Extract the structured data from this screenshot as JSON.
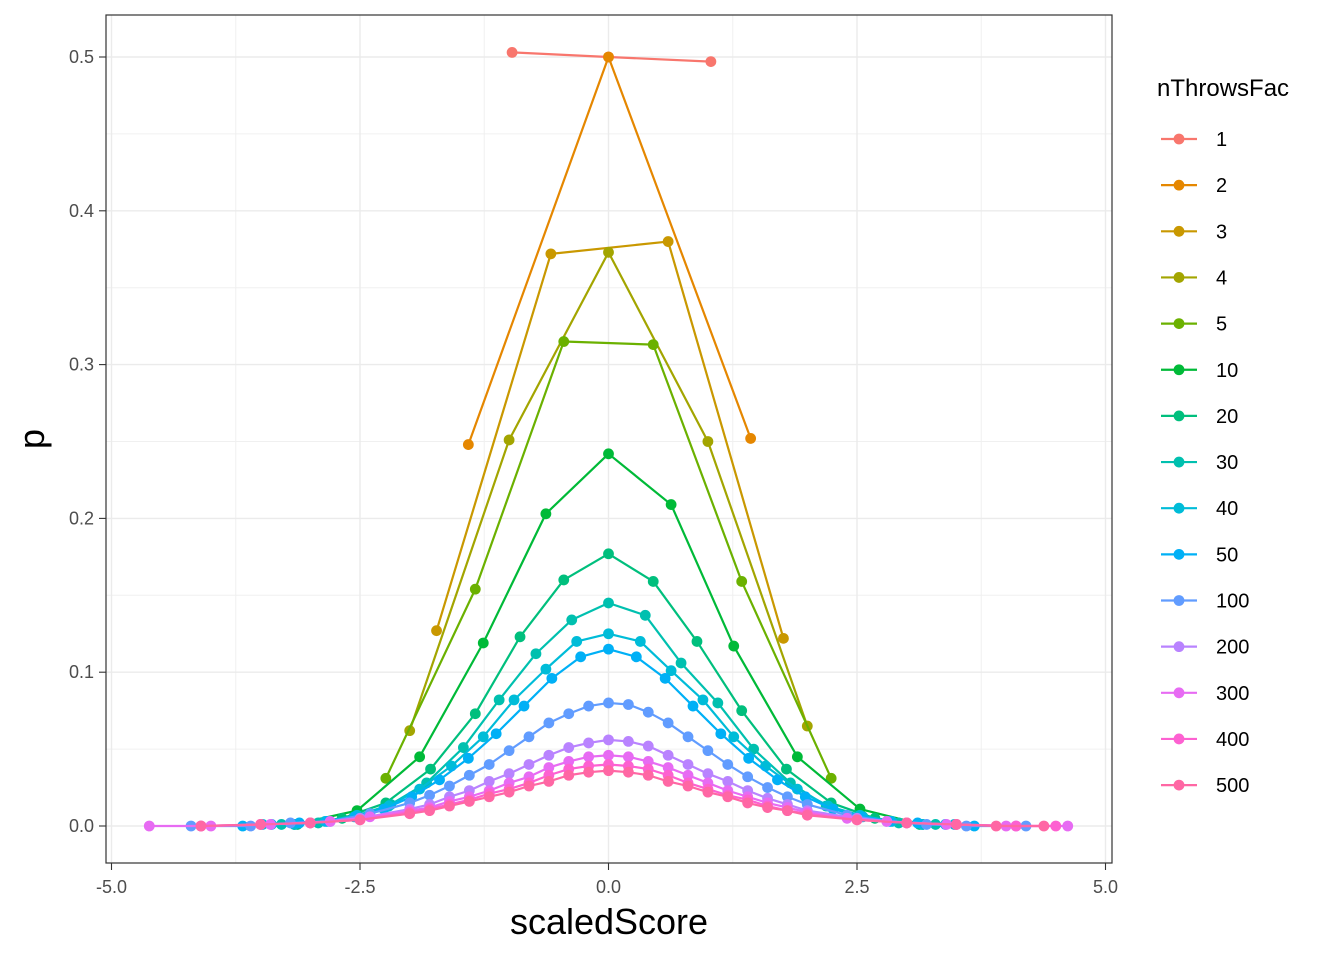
{
  "chart_data": {
    "type": "line",
    "title": "",
    "xlabel": "scaledScore",
    "ylabel": "p",
    "xlim": [
      -5.0,
      5.0
    ],
    "ylim": [
      0.0,
      0.5
    ],
    "x_ticks": [
      "-5.0",
      "-2.5",
      "0.0",
      "2.5",
      "5.0"
    ],
    "y_ticks": [
      "0.0",
      "0.1",
      "0.2",
      "0.3",
      "0.4",
      "0.5"
    ],
    "grid": true,
    "legend": {
      "title": "nThrowsFac",
      "position": "right"
    },
    "series": [
      {
        "name": "1",
        "color": "#F8766D",
        "points": [
          [
            -0.97,
            0.503
          ],
          [
            0.0,
            0.5
          ],
          [
            1.03,
            0.497
          ]
        ]
      },
      {
        "name": "2",
        "color": "#E58700",
        "points": [
          [
            -1.41,
            0.248
          ],
          [
            0.0,
            0.5
          ],
          [
            1.43,
            0.252
          ]
        ]
      },
      {
        "name": "3",
        "color": "#C99800",
        "points": [
          [
            -1.73,
            0.127
          ],
          [
            -0.58,
            0.372
          ],
          [
            0.6,
            0.38
          ],
          [
            1.76,
            0.122
          ]
        ]
      },
      {
        "name": "4",
        "color": "#A3A500",
        "points": [
          [
            -2.0,
            0.062
          ],
          [
            -1.0,
            0.251
          ],
          [
            0.0,
            0.373
          ],
          [
            1.0,
            0.25
          ],
          [
            2.0,
            0.065
          ]
        ]
      },
      {
        "name": "5",
        "color": "#6BB100",
        "points": [
          [
            -2.24,
            0.031
          ],
          [
            -1.34,
            0.154
          ],
          [
            -0.45,
            0.315
          ],
          [
            0.45,
            0.313
          ],
          [
            1.34,
            0.159
          ],
          [
            2.24,
            0.031
          ]
        ]
      },
      {
        "name": "10",
        "color": "#00BA38",
        "points": [
          [
            -3.16,
            0.001
          ],
          [
            -2.53,
            0.01
          ],
          [
            -1.9,
            0.045
          ],
          [
            -1.26,
            0.119
          ],
          [
            -0.63,
            0.203
          ],
          [
            0.0,
            0.242
          ],
          [
            0.63,
            0.209
          ],
          [
            1.26,
            0.117
          ],
          [
            1.9,
            0.045
          ],
          [
            2.53,
            0.011
          ],
          [
            3.16,
            0.001
          ]
        ]
      },
      {
        "name": "20",
        "color": "#00BF7D",
        "points": [
          [
            -3.13,
            0.001
          ],
          [
            -2.68,
            0.005
          ],
          [
            -2.24,
            0.015
          ],
          [
            -1.79,
            0.037
          ],
          [
            -1.34,
            0.073
          ],
          [
            -0.89,
            0.123
          ],
          [
            -0.45,
            0.16
          ],
          [
            0.0,
            0.177
          ],
          [
            0.45,
            0.159
          ],
          [
            0.89,
            0.12
          ],
          [
            1.34,
            0.075
          ],
          [
            1.79,
            0.037
          ],
          [
            2.24,
            0.015
          ],
          [
            2.68,
            0.005
          ],
          [
            3.13,
            0.001
          ]
        ]
      },
      {
        "name": "30",
        "color": "#00C0AF",
        "points": [
          [
            -3.29,
            0.001
          ],
          [
            -2.92,
            0.002
          ],
          [
            -2.56,
            0.006
          ],
          [
            -2.19,
            0.014
          ],
          [
            -1.83,
            0.028
          ],
          [
            -1.46,
            0.051
          ],
          [
            -1.1,
            0.082
          ],
          [
            -0.73,
            0.112
          ],
          [
            -0.37,
            0.134
          ],
          [
            0.0,
            0.145
          ],
          [
            0.37,
            0.137
          ],
          [
            0.73,
            0.106
          ],
          [
            1.1,
            0.08
          ],
          [
            1.46,
            0.05
          ],
          [
            1.83,
            0.028
          ],
          [
            2.19,
            0.013
          ],
          [
            2.56,
            0.006
          ],
          [
            2.92,
            0.002
          ],
          [
            3.29,
            0.001
          ]
        ]
      },
      {
        "name": "40",
        "color": "#00BCD8",
        "points": [
          [
            -3.48,
            0.001
          ],
          [
            -3.16,
            0.001
          ],
          [
            -2.85,
            0.003
          ],
          [
            -2.53,
            0.007
          ],
          [
            -2.21,
            0.013
          ],
          [
            -1.9,
            0.024
          ],
          [
            -1.58,
            0.039
          ],
          [
            -1.26,
            0.058
          ],
          [
            -0.95,
            0.082
          ],
          [
            -0.63,
            0.102
          ],
          [
            -0.32,
            0.12
          ],
          [
            0.0,
            0.125
          ],
          [
            0.32,
            0.12
          ],
          [
            0.63,
            0.101
          ],
          [
            0.95,
            0.082
          ],
          [
            1.26,
            0.058
          ],
          [
            1.58,
            0.039
          ],
          [
            1.9,
            0.024
          ],
          [
            2.21,
            0.013
          ],
          [
            2.53,
            0.007
          ],
          [
            2.85,
            0.003
          ],
          [
            3.16,
            0.001
          ],
          [
            3.48,
            0.001
          ]
        ]
      },
      {
        "name": "50",
        "color": "#00B0F6",
        "points": [
          [
            -3.68,
            0.0
          ],
          [
            -3.39,
            0.001
          ],
          [
            -3.11,
            0.002
          ],
          [
            -2.83,
            0.003
          ],
          [
            -2.55,
            0.006
          ],
          [
            -2.26,
            0.011
          ],
          [
            -1.98,
            0.019
          ],
          [
            -1.7,
            0.03
          ],
          [
            -1.41,
            0.044
          ],
          [
            -1.13,
            0.06
          ],
          [
            -0.85,
            0.078
          ],
          [
            -0.57,
            0.096
          ],
          [
            -0.28,
            0.11
          ],
          [
            0.0,
            0.115
          ],
          [
            0.28,
            0.11
          ],
          [
            0.57,
            0.096
          ],
          [
            0.85,
            0.078
          ],
          [
            1.13,
            0.06
          ],
          [
            1.41,
            0.044
          ],
          [
            1.7,
            0.03
          ],
          [
            1.98,
            0.019
          ],
          [
            2.26,
            0.011
          ],
          [
            2.55,
            0.006
          ],
          [
            2.83,
            0.003
          ],
          [
            3.11,
            0.002
          ],
          [
            3.39,
            0.001
          ],
          [
            3.68,
            0.0
          ]
        ]
      },
      {
        "name": "100",
        "color": "#619CFF",
        "points": [
          [
            -4.2,
            0.0
          ],
          [
            -3.6,
            0.0
          ],
          [
            -3.2,
            0.002
          ],
          [
            -2.8,
            0.003
          ],
          [
            -2.4,
            0.008
          ],
          [
            -2.0,
            0.015
          ],
          [
            -1.8,
            0.02
          ],
          [
            -1.6,
            0.026
          ],
          [
            -1.4,
            0.033
          ],
          [
            -1.2,
            0.04
          ],
          [
            -1.0,
            0.049
          ],
          [
            -0.8,
            0.058
          ],
          [
            -0.6,
            0.067
          ],
          [
            -0.4,
            0.073
          ],
          [
            -0.2,
            0.078
          ],
          [
            0.0,
            0.08
          ],
          [
            0.2,
            0.079
          ],
          [
            0.4,
            0.074
          ],
          [
            0.6,
            0.067
          ],
          [
            0.8,
            0.058
          ],
          [
            1.0,
            0.049
          ],
          [
            1.2,
            0.04
          ],
          [
            1.4,
            0.032
          ],
          [
            1.6,
            0.025
          ],
          [
            1.8,
            0.019
          ],
          [
            2.0,
            0.014
          ],
          [
            2.4,
            0.007
          ],
          [
            2.8,
            0.003
          ],
          [
            3.2,
            0.001
          ],
          [
            3.6,
            0.0
          ],
          [
            4.2,
            0.0
          ]
        ]
      },
      {
        "name": "200",
        "color": "#B983FF",
        "points": [
          [
            -4.1,
            0.0
          ],
          [
            -3.5,
            0.001
          ],
          [
            -3.0,
            0.002
          ],
          [
            -2.5,
            0.005
          ],
          [
            -2.0,
            0.011
          ],
          [
            -1.8,
            0.014
          ],
          [
            -1.6,
            0.019
          ],
          [
            -1.4,
            0.023
          ],
          [
            -1.2,
            0.029
          ],
          [
            -1.0,
            0.034
          ],
          [
            -0.8,
            0.04
          ],
          [
            -0.6,
            0.046
          ],
          [
            -0.4,
            0.051
          ],
          [
            -0.2,
            0.054
          ],
          [
            0.0,
            0.056
          ],
          [
            0.2,
            0.055
          ],
          [
            0.4,
            0.052
          ],
          [
            0.6,
            0.046
          ],
          [
            0.8,
            0.04
          ],
          [
            1.0,
            0.034
          ],
          [
            1.2,
            0.029
          ],
          [
            1.4,
            0.023
          ],
          [
            1.6,
            0.018
          ],
          [
            1.8,
            0.014
          ],
          [
            2.0,
            0.01
          ],
          [
            2.5,
            0.005
          ],
          [
            3.0,
            0.002
          ],
          [
            3.5,
            0.001
          ],
          [
            4.1,
            0.0
          ]
        ]
      },
      {
        "name": "300",
        "color": "#E76BF3",
        "points": [
          [
            -4.62,
            0.0
          ],
          [
            -4.0,
            0.0
          ],
          [
            -3.4,
            0.001
          ],
          [
            -2.8,
            0.003
          ],
          [
            -2.4,
            0.006
          ],
          [
            -2.0,
            0.01
          ],
          [
            -1.8,
            0.012
          ],
          [
            -1.6,
            0.016
          ],
          [
            -1.4,
            0.019
          ],
          [
            -1.2,
            0.023
          ],
          [
            -1.0,
            0.028
          ],
          [
            -0.8,
            0.032
          ],
          [
            -0.6,
            0.038
          ],
          [
            -0.4,
            0.042
          ],
          [
            -0.2,
            0.045
          ],
          [
            0.0,
            0.046
          ],
          [
            0.2,
            0.045
          ],
          [
            0.4,
            0.042
          ],
          [
            0.6,
            0.038
          ],
          [
            0.8,
            0.033
          ],
          [
            1.0,
            0.028
          ],
          [
            1.2,
            0.023
          ],
          [
            1.4,
            0.019
          ],
          [
            1.6,
            0.015
          ],
          [
            1.8,
            0.012
          ],
          [
            2.0,
            0.009
          ],
          [
            2.4,
            0.005
          ],
          [
            2.8,
            0.003
          ],
          [
            3.4,
            0.001
          ],
          [
            4.0,
            0.0
          ],
          [
            4.62,
            0.0
          ]
        ]
      },
      {
        "name": "400",
        "color": "#FD61D1",
        "points": [
          [
            -4.1,
            0.0
          ],
          [
            -3.5,
            0.001
          ],
          [
            -3.0,
            0.002
          ],
          [
            -2.5,
            0.004
          ],
          [
            -2.0,
            0.009
          ],
          [
            -1.8,
            0.011
          ],
          [
            -1.6,
            0.014
          ],
          [
            -1.4,
            0.017
          ],
          [
            -1.2,
            0.021
          ],
          [
            -1.0,
            0.024
          ],
          [
            -0.8,
            0.028
          ],
          [
            -0.6,
            0.033
          ],
          [
            -0.4,
            0.037
          ],
          [
            -0.2,
            0.039
          ],
          [
            0.0,
            0.04
          ],
          [
            0.2,
            0.039
          ],
          [
            0.4,
            0.037
          ],
          [
            0.6,
            0.033
          ],
          [
            0.8,
            0.028
          ],
          [
            1.0,
            0.024
          ],
          [
            1.2,
            0.02
          ],
          [
            1.4,
            0.017
          ],
          [
            1.6,
            0.013
          ],
          [
            1.8,
            0.01
          ],
          [
            2.0,
            0.008
          ],
          [
            2.5,
            0.004
          ],
          [
            3.0,
            0.002
          ],
          [
            3.5,
            0.001
          ],
          [
            4.1,
            0.0
          ],
          [
            4.5,
            0.0
          ]
        ]
      },
      {
        "name": "500",
        "color": "#FF67A4",
        "points": [
          [
            -4.1,
            0.0
          ],
          [
            -3.5,
            0.001
          ],
          [
            -3.0,
            0.002
          ],
          [
            -2.5,
            0.004
          ],
          [
            -2.0,
            0.008
          ],
          [
            -1.8,
            0.01
          ],
          [
            -1.6,
            0.013
          ],
          [
            -1.4,
            0.016
          ],
          [
            -1.2,
            0.019
          ],
          [
            -1.0,
            0.022
          ],
          [
            -0.8,
            0.026
          ],
          [
            -0.6,
            0.029
          ],
          [
            -0.4,
            0.033
          ],
          [
            -0.2,
            0.035
          ],
          [
            0.0,
            0.036
          ],
          [
            0.2,
            0.035
          ],
          [
            0.4,
            0.033
          ],
          [
            0.6,
            0.029
          ],
          [
            0.8,
            0.026
          ],
          [
            1.0,
            0.022
          ],
          [
            1.2,
            0.019
          ],
          [
            1.4,
            0.015
          ],
          [
            1.6,
            0.012
          ],
          [
            1.8,
            0.01
          ],
          [
            2.0,
            0.007
          ],
          [
            2.5,
            0.004
          ],
          [
            3.0,
            0.002
          ],
          [
            3.5,
            0.001
          ],
          [
            3.9,
            0.0
          ],
          [
            4.38,
            0.0
          ]
        ]
      }
    ]
  }
}
